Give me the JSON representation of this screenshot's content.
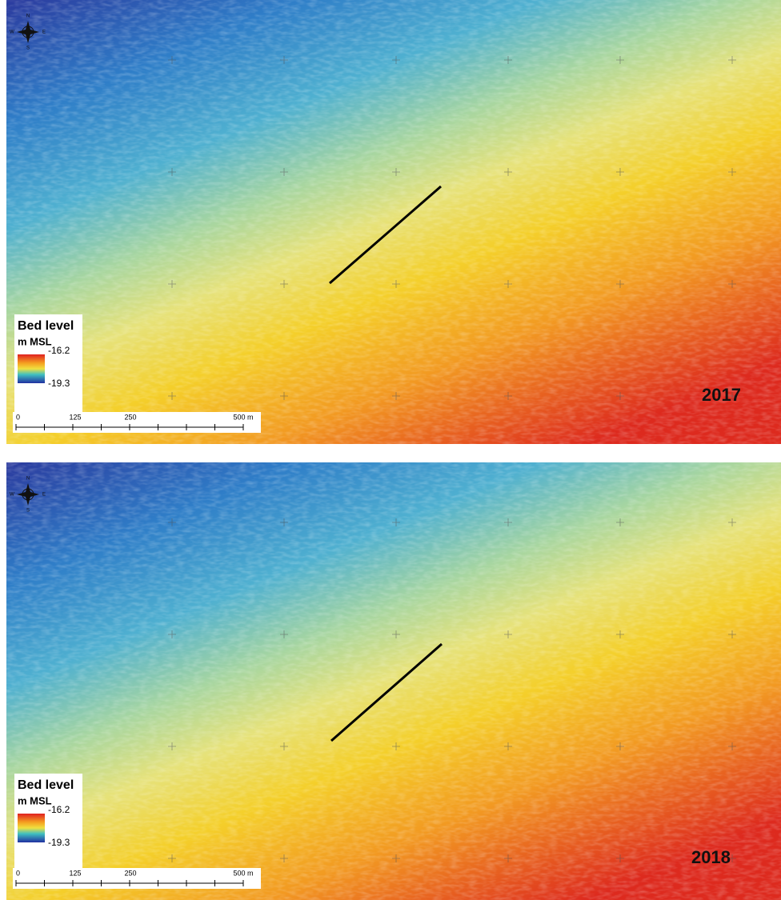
{
  "panels": [
    {
      "legend": {
        "title": "Bed level",
        "unit": "m MSL",
        "max": "-16.2",
        "min": "-19.3"
      },
      "scale": [
        "0",
        "125",
        "250",
        "500 m"
      ],
      "compass": [
        "N",
        "E",
        "S",
        "W"
      ],
      "year": "2017"
    },
    {
      "legend": {
        "title": "Bed level",
        "unit": "m MSL",
        "max": "-16.2",
        "min": "-19.3"
      },
      "scale": [
        "0",
        "125",
        "250",
        "500 m"
      ],
      "compass": [
        "N",
        "E",
        "S",
        "W"
      ],
      "year": "2018"
    }
  ]
}
